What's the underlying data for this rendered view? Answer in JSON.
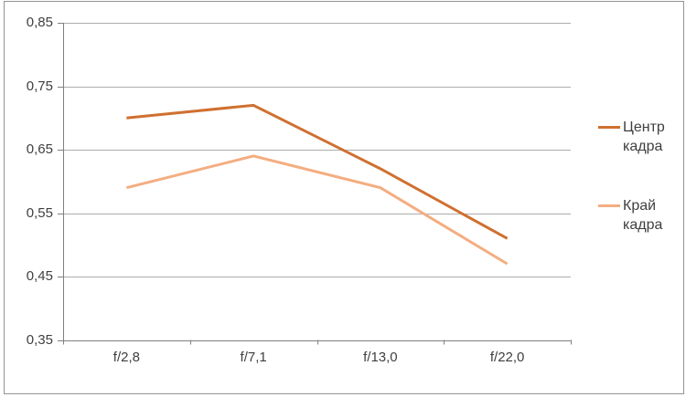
{
  "chart_data": {
    "type": "line",
    "title": "",
    "xlabel": "",
    "ylabel": "",
    "categories": [
      "f/2,8",
      "f/7,1",
      "f/13,0",
      "f/22,0"
    ],
    "series": [
      {
        "name": "Центр кадра",
        "color": "#cf7030",
        "values": [
          0.7,
          0.72,
          0.62,
          0.51
        ]
      },
      {
        "name": "Край кадра",
        "color": "#f4ad80",
        "values": [
          0.59,
          0.64,
          0.59,
          0.47
        ]
      }
    ],
    "ylim": [
      0.35,
      0.85
    ],
    "ytick_step": 0.1,
    "ytick_labels": [
      "0,85",
      "0,75",
      "0,65",
      "0,55",
      "0,45",
      "0,35"
    ],
    "grid": true,
    "legend_position": "right",
    "decimal_separator": ","
  }
}
